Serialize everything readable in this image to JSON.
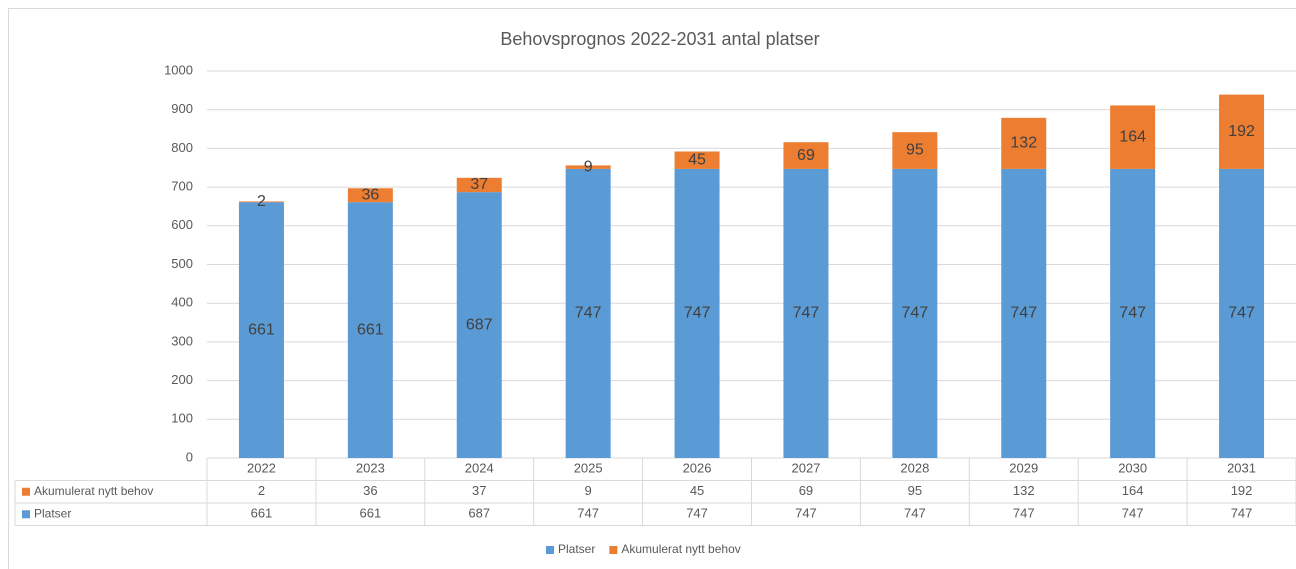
{
  "chart_data": {
    "type": "stacked_bar",
    "title": "Behovsprognos 2022-2031 antal platser",
    "categories": [
      "2022",
      "2023",
      "2024",
      "2025",
      "2026",
      "2027",
      "2028",
      "2029",
      "2030",
      "2031"
    ],
    "series": [
      {
        "name": "Platser",
        "color": "#5b9bd5",
        "values": [
          661,
          661,
          687,
          747,
          747,
          747,
          747,
          747,
          747,
          747
        ]
      },
      {
        "name": "Akumulerat nytt behov",
        "color": "#ed7d31",
        "values": [
          2,
          36,
          37,
          9,
          45,
          69,
          95,
          132,
          164,
          192
        ]
      }
    ],
    "ylim": [
      0,
      1000
    ],
    "yticks": [
      0,
      100,
      200,
      300,
      400,
      500,
      600,
      700,
      800,
      900,
      1000
    ],
    "grid": true,
    "legend": "bottom"
  }
}
